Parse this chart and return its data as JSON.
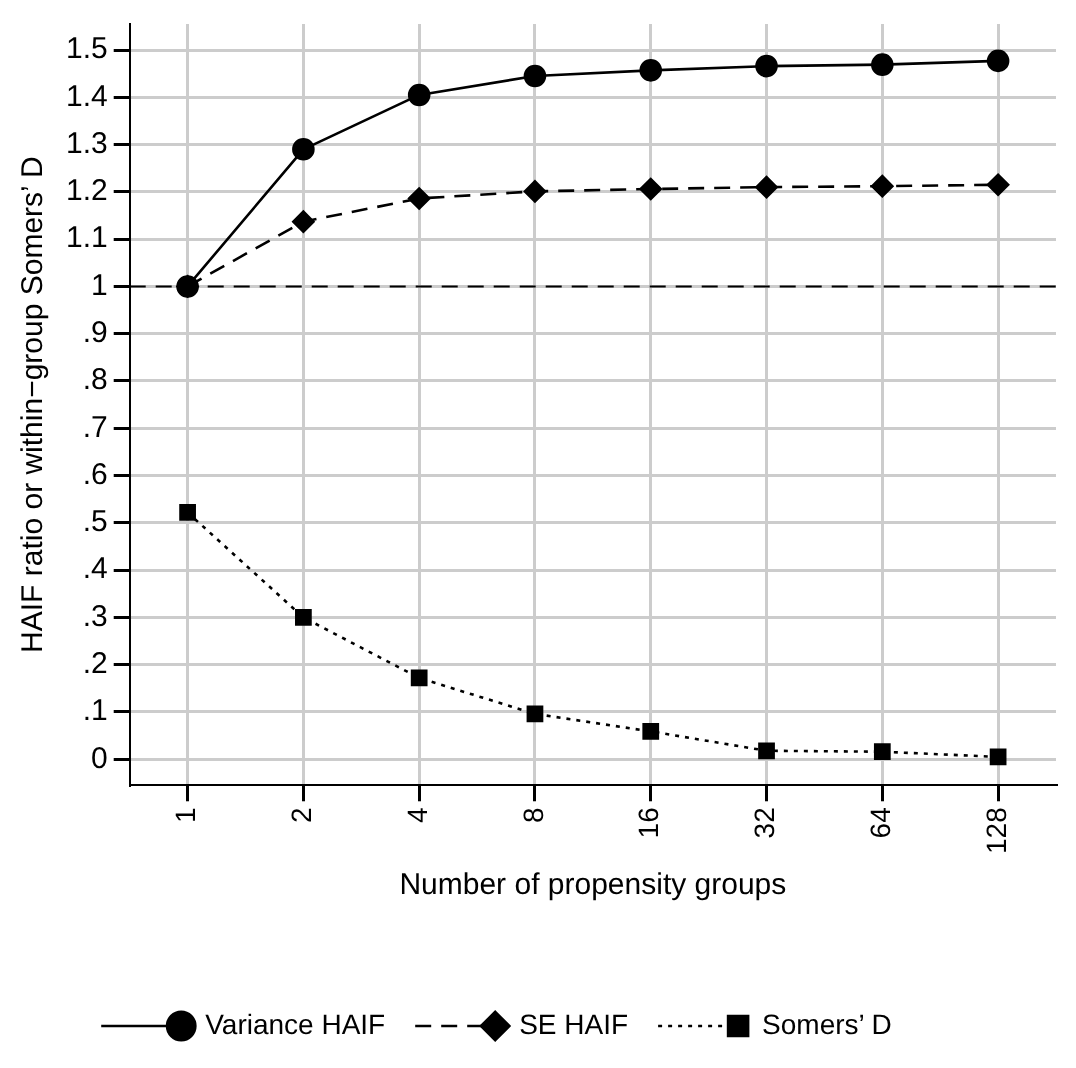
{
  "chart_data": {
    "type": "line",
    "xlabel": "Number of propensity groups",
    "ylabel": "HAIF ratio or within−group Somers’ D",
    "categories": [
      "1",
      "2",
      "4",
      "8",
      "16",
      "32",
      "64",
      "128"
    ],
    "series": [
      {
        "name": "Variance HAIF",
        "color": "#000000",
        "marker": "circle",
        "line_style": "solid",
        "values": [
          1,
          1.29,
          1.405,
          1.445,
          1.457,
          1.466,
          1.469,
          1.477
        ]
      },
      {
        "name": "SE HAIF",
        "color": "#000000",
        "marker": "diamond",
        "line_style": "dashed",
        "values": [
          1,
          1.137,
          1.186,
          1.201,
          1.206,
          1.21,
          1.212,
          1.215
        ]
      },
      {
        "name": "Somers’ D",
        "color": "#000000",
        "marker": "square",
        "line_style": "dotted",
        "values": [
          0.522,
          0.3,
          0.172,
          0.096,
          0.059,
          0.018,
          0.016,
          0.005
        ]
      }
    ],
    "ylim": [
      -0.055,
      1.555
    ],
    "yticks": [
      0,
      {
        "value": 0.1,
        "label": ".1"
      },
      {
        "value": 0.2,
        "label": ".2"
      },
      {
        "value": 0.3,
        "label": ".3"
      },
      {
        "value": 0.4,
        "label": ".4"
      },
      {
        "value": 0.5,
        "label": ".5"
      },
      {
        "value": 0.6,
        "label": ".6"
      },
      {
        "value": 0.7,
        "label": ".7"
      },
      {
        "value": 0.8,
        "label": ".8"
      },
      {
        "value": 0.9,
        "label": ".9"
      },
      1,
      1.1,
      1.2,
      1.3,
      1.4,
      1.5
    ],
    "ref_lines": [
      {
        "axis": "y",
        "value": 1,
        "line_style": "dashed",
        "color": "#000000"
      }
    ],
    "grid": true,
    "legend": "bottom"
  }
}
